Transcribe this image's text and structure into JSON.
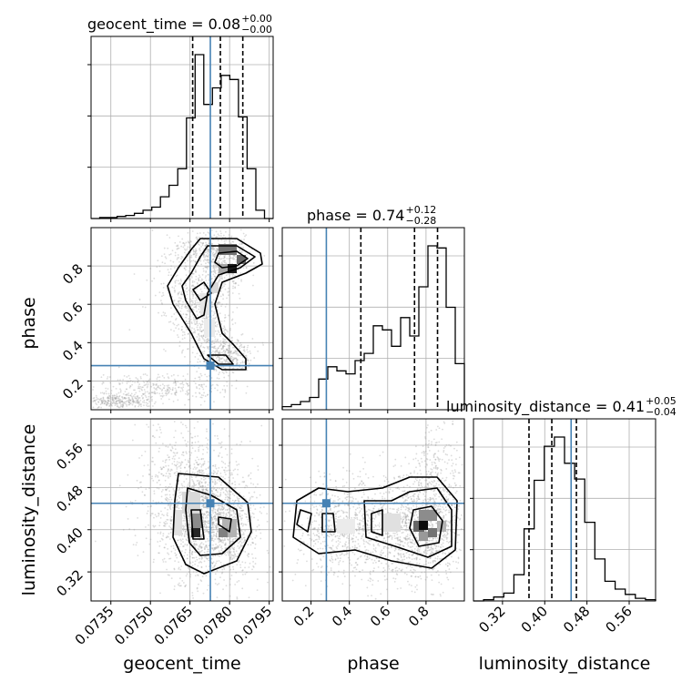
{
  "chart_data": {
    "type": "corner",
    "parameters": [
      {
        "name": "geocent_time",
        "label": "geocent_time",
        "title_prefix": "geocent_time = 0.08",
        "title_sup": "+0.00",
        "title_sub": "−0.00",
        "range": [
          0.07275,
          0.07965
        ],
        "ticks": [
          "0.0735",
          "0.0750",
          "0.0765",
          "0.0780",
          "0.0795"
        ],
        "tick_values": [
          0.0735,
          0.075,
          0.0765,
          0.078,
          0.0795
        ],
        "truth": 0.07727,
        "quantiles": [
          0.0766,
          0.07765,
          0.0785
        ],
        "hist": [
          0,
          1,
          1,
          2,
          3,
          5,
          8,
          11,
          21,
          32,
          48,
          97,
          158,
          110,
          126,
          138,
          134,
          98,
          48,
          8,
          0
        ]
      },
      {
        "name": "phase",
        "label": "phase",
        "title_prefix": "phase = 0.74",
        "title_sup": "+0.12",
        "title_sub": "−0.28",
        "range": [
          0.05,
          1.0
        ],
        "ticks": [
          "0.2",
          "0.4",
          "0.6",
          "0.8"
        ],
        "tick_values": [
          0.2,
          0.4,
          0.6,
          0.8
        ],
        "truth": 0.28,
        "quantiles": [
          0.46,
          0.74,
          0.86
        ],
        "hist": [
          3,
          5,
          8,
          12,
          30,
          42,
          38,
          35,
          48,
          55,
          82,
          78,
          62,
          90,
          72,
          120,
          160,
          158,
          100,
          45
        ]
      },
      {
        "name": "luminosity_distance",
        "label": "luminosity_distance",
        "title_prefix": "luminosity_distance = 0.41",
        "title_sup": "+0.05",
        "title_sub": "−0.04",
        "range": [
          0.265,
          0.61
        ],
        "ticks": [
          "0.32",
          "0.40",
          "0.48",
          "0.56"
        ],
        "tick_values": [
          0.32,
          0.4,
          0.48,
          0.56
        ],
        "truth": 0.45,
        "quantiles": [
          0.3702,
          0.4134,
          0.46
        ],
        "hist": [
          0,
          1,
          3,
          6,
          20,
          55,
          92,
          118,
          125,
          105,
          93,
          60,
          32,
          15,
          9,
          5,
          2,
          1
        ]
      }
    ],
    "truth_color": "#4682b4"
  }
}
